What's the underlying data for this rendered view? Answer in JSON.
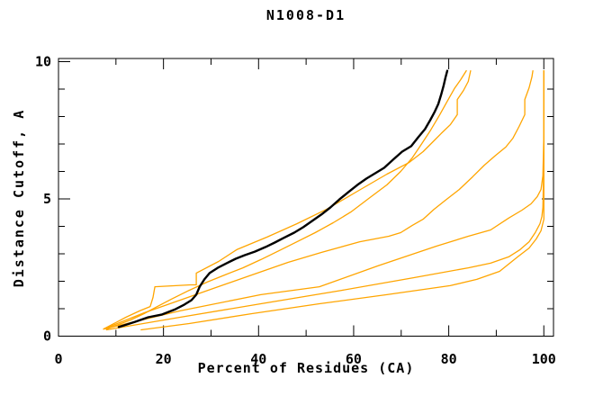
{
  "chart_data": {
    "type": "line",
    "title": "N1008-D1",
    "xlabel": "Percent of Residues (CA)",
    "ylabel": "Distance Cutoff, A",
    "xlim": [
      0,
      100
    ],
    "ylim": [
      0,
      10
    ],
    "x_major_ticks": [
      0,
      20,
      40,
      60,
      80,
      100
    ],
    "x_minor_ticks": [
      10,
      30,
      50,
      70,
      90
    ],
    "y_major_ticks": [
      0,
      5,
      10
    ],
    "y_minor_ticks": [
      1,
      2,
      3,
      4,
      6,
      7,
      8,
      9
    ],
    "grid": false,
    "legend": "none",
    "colors": {
      "highlight": "#000000",
      "comparison": "#ffa500"
    },
    "series": [
      {
        "name": "comparison-1",
        "role": "comparison",
        "emphasis": false,
        "points": [
          [
            7.4,
            0.26
          ],
          [
            12.1,
            0.69
          ],
          [
            15.0,
            0.92
          ],
          [
            17.2,
            1.08
          ],
          [
            17.8,
            1.41
          ],
          [
            18.2,
            1.8
          ],
          [
            25.7,
            1.87
          ],
          [
            26.9,
            1.87
          ],
          [
            26.9,
            2.3
          ],
          [
            31.6,
            2.72
          ],
          [
            35.4,
            3.15
          ],
          [
            41.8,
            3.61
          ],
          [
            48.1,
            4.1
          ],
          [
            54.3,
            4.62
          ],
          [
            60.8,
            5.28
          ],
          [
            67.0,
            5.9
          ],
          [
            71.7,
            6.33
          ],
          [
            74.6,
            6.72
          ],
          [
            76.5,
            7.05
          ],
          [
            78.4,
            7.38
          ],
          [
            80.3,
            7.7
          ],
          [
            81.8,
            8.07
          ],
          [
            81.8,
            8.62
          ],
          [
            83.1,
            8.95
          ],
          [
            84.1,
            9.28
          ],
          [
            84.6,
            9.67
          ]
        ]
      },
      {
        "name": "comparison-2",
        "role": "comparison",
        "emphasis": false,
        "points": [
          [
            8.0,
            0.26
          ],
          [
            13.1,
            0.59
          ],
          [
            15.9,
            0.82
          ],
          [
            18.7,
            1.08
          ],
          [
            21.6,
            1.34
          ],
          [
            25.4,
            1.67
          ],
          [
            29.2,
            1.97
          ],
          [
            32.9,
            2.23
          ],
          [
            36.7,
            2.49
          ],
          [
            40.5,
            2.79
          ],
          [
            44.3,
            3.11
          ],
          [
            48.1,
            3.44
          ],
          [
            51.9,
            3.77
          ],
          [
            55.7,
            4.13
          ],
          [
            59.4,
            4.52
          ],
          [
            63.2,
            5.02
          ],
          [
            67.0,
            5.51
          ],
          [
            69.9,
            6.0
          ],
          [
            72.3,
            6.49
          ],
          [
            74.2,
            6.98
          ],
          [
            76.1,
            7.48
          ],
          [
            78.0,
            8.03
          ],
          [
            79.7,
            8.56
          ],
          [
            81.2,
            9.02
          ],
          [
            82.5,
            9.34
          ],
          [
            83.7,
            9.67
          ]
        ]
      },
      {
        "name": "comparison-3",
        "role": "comparison",
        "emphasis": false,
        "points": [
          [
            7.4,
            0.26
          ],
          [
            15.9,
            0.85
          ],
          [
            23.5,
            1.31
          ],
          [
            31.0,
            1.77
          ],
          [
            38.6,
            2.23
          ],
          [
            46.2,
            2.69
          ],
          [
            53.2,
            3.05
          ],
          [
            61.3,
            3.44
          ],
          [
            67.4,
            3.64
          ],
          [
            69.9,
            3.77
          ],
          [
            72.3,
            4.03
          ],
          [
            74.6,
            4.26
          ],
          [
            76.9,
            4.62
          ],
          [
            79.3,
            4.95
          ],
          [
            82.2,
            5.34
          ],
          [
            85.0,
            5.8
          ],
          [
            87.5,
            6.23
          ],
          [
            89.7,
            6.56
          ],
          [
            92.0,
            6.89
          ],
          [
            93.5,
            7.21
          ],
          [
            94.8,
            7.64
          ],
          [
            96.0,
            8.07
          ],
          [
            96.0,
            8.62
          ],
          [
            96.9,
            9.05
          ],
          [
            97.5,
            9.44
          ],
          [
            97.7,
            9.67
          ]
        ]
      },
      {
        "name": "comparison-4",
        "role": "comparison",
        "emphasis": false,
        "points": [
          [
            7.4,
            0.26
          ],
          [
            23.5,
            0.92
          ],
          [
            40.5,
            1.51
          ],
          [
            52.8,
            1.8
          ],
          [
            65.1,
            2.56
          ],
          [
            77.4,
            3.28
          ],
          [
            84.1,
            3.64
          ],
          [
            88.8,
            3.87
          ],
          [
            92.6,
            4.3
          ],
          [
            95.4,
            4.59
          ],
          [
            97.3,
            4.82
          ],
          [
            98.6,
            5.08
          ],
          [
            99.4,
            5.34
          ],
          [
            99.8,
            5.84
          ],
          [
            100,
            7.31
          ],
          [
            100,
            8.95
          ],
          [
            100,
            9.67
          ]
        ]
      },
      {
        "name": "comparison-5",
        "role": "comparison",
        "emphasis": false,
        "points": [
          [
            8.0,
            0.23
          ],
          [
            23.5,
            0.69
          ],
          [
            40.5,
            1.18
          ],
          [
            57.5,
            1.67
          ],
          [
            72.7,
            2.13
          ],
          [
            84.1,
            2.49
          ],
          [
            88.8,
            2.66
          ],
          [
            92.6,
            2.89
          ],
          [
            95.0,
            3.15
          ],
          [
            96.9,
            3.44
          ],
          [
            98.2,
            3.77
          ],
          [
            99.2,
            4.1
          ],
          [
            99.6,
            4.36
          ],
          [
            99.8,
            4.69
          ],
          [
            100,
            6.33
          ],
          [
            100,
            8.3
          ],
          [
            100,
            9.67
          ]
        ]
      },
      {
        "name": "comparison-6",
        "role": "comparison",
        "emphasis": false,
        "points": [
          [
            15.3,
            0.23
          ],
          [
            25.4,
            0.46
          ],
          [
            38.6,
            0.82
          ],
          [
            52.8,
            1.18
          ],
          [
            67.0,
            1.51
          ],
          [
            80.3,
            1.84
          ],
          [
            85.9,
            2.07
          ],
          [
            90.7,
            2.36
          ],
          [
            94.5,
            2.89
          ],
          [
            96.9,
            3.21
          ],
          [
            98.4,
            3.54
          ],
          [
            99.4,
            3.84
          ],
          [
            100,
            4.26
          ],
          [
            100,
            6.66
          ],
          [
            100,
            9.67
          ]
        ]
      },
      {
        "name": "model-black",
        "role": "highlight",
        "emphasis": true,
        "points": [
          [
            10.6,
            0.33
          ],
          [
            14.0,
            0.52
          ],
          [
            16.8,
            0.69
          ],
          [
            19.7,
            0.79
          ],
          [
            22.5,
            0.98
          ],
          [
            24.4,
            1.15
          ],
          [
            25.9,
            1.31
          ],
          [
            26.9,
            1.51
          ],
          [
            27.6,
            1.8
          ],
          [
            28.6,
            2.07
          ],
          [
            29.7,
            2.3
          ],
          [
            31.4,
            2.49
          ],
          [
            33.3,
            2.66
          ],
          [
            35.2,
            2.82
          ],
          [
            37.1,
            2.95
          ],
          [
            39.2,
            3.08
          ],
          [
            41.5,
            3.25
          ],
          [
            43.4,
            3.41
          ],
          [
            45.2,
            3.57
          ],
          [
            47.5,
            3.77
          ],
          [
            49.4,
            3.97
          ],
          [
            51.3,
            4.2
          ],
          [
            53.2,
            4.43
          ],
          [
            55.1,
            4.69
          ],
          [
            57.0,
            4.98
          ],
          [
            58.9,
            5.25
          ],
          [
            60.8,
            5.51
          ],
          [
            62.7,
            5.74
          ],
          [
            64.5,
            5.93
          ],
          [
            66.4,
            6.13
          ],
          [
            68.3,
            6.43
          ],
          [
            70.2,
            6.72
          ],
          [
            72.1,
            6.92
          ],
          [
            73.6,
            7.25
          ],
          [
            75.0,
            7.54
          ],
          [
            76.1,
            7.87
          ],
          [
            77.0,
            8.16
          ],
          [
            77.8,
            8.46
          ],
          [
            78.4,
            8.79
          ],
          [
            78.9,
            9.11
          ],
          [
            79.3,
            9.41
          ],
          [
            79.7,
            9.67
          ]
        ]
      }
    ]
  }
}
